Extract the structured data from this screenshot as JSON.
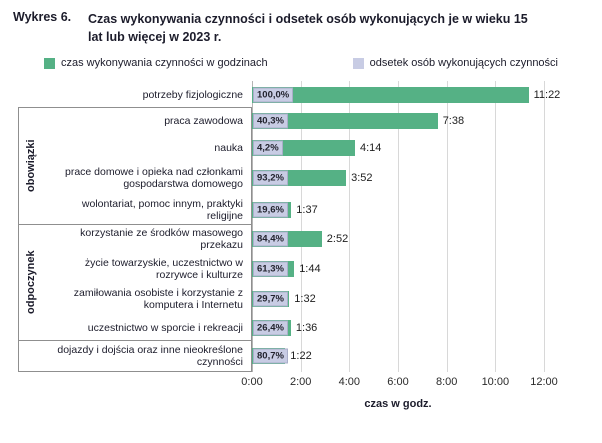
{
  "header": {
    "prefix": "Wykres 6.",
    "title": "Czas wykonywania czynności i odsetek osób wykonujących je w wieku 15 lat lub więcej w 2023 r."
  },
  "legend": {
    "time_label": "czas wykonywania czynności w godzinach",
    "percent_label": "odsetek osób wykonujących czynności"
  },
  "colors": {
    "time_bar": "#55b185",
    "percent_badge": "#c8cce4"
  },
  "chart_data": {
    "type": "bar",
    "orientation": "horizontal",
    "title": "Wykres 6. Czas wykonywania czynności i odsetek osób wykonujących je w wieku 15 lat lub więcej w 2023 r.",
    "xlabel": "czas w godz.",
    "x_ticks": [
      "0:00",
      "2:00",
      "4:00",
      "6:00",
      "8:00",
      "10:00",
      "12:00"
    ],
    "xlim_hours": [
      0,
      12
    ],
    "grid": true,
    "legend_position": "top",
    "groups": [
      {
        "name": null,
        "bordered": false,
        "rows": [
          0
        ]
      },
      {
        "name": "obowiązki",
        "bordered": true,
        "rows": [
          1,
          2,
          3,
          4
        ]
      },
      {
        "name": "odpoczynek",
        "bordered": true,
        "rows": [
          5,
          6,
          7,
          8
        ]
      },
      {
        "name": null,
        "bordered": true,
        "rows": [
          9
        ]
      }
    ],
    "rows": [
      {
        "label": "potrzeby fizjologiczne",
        "pct": "100,0%",
        "time": "11:22",
        "hours": 11.367
      },
      {
        "label": "praca zawodowa",
        "pct": "40,3%",
        "time": "7:38",
        "hours": 7.633
      },
      {
        "label": "nauka",
        "pct": "4,2%",
        "time": "4:14",
        "hours": 4.233
      },
      {
        "label": "prace domowe i opieka nad członkami gospodarstwa domowego",
        "pct": "93,2%",
        "time": "3:52",
        "hours": 3.867
      },
      {
        "label": "wolontariat, pomoc innym, praktyki religijne",
        "pct": "19,6%",
        "time": "1:37",
        "hours": 1.617
      },
      {
        "label": "korzystanie ze środków masowego przekazu",
        "pct": "84,4%",
        "time": "2:52",
        "hours": 2.867
      },
      {
        "label": "życie towarzyskie, uczestnictwo w rozrywce i kulturze",
        "pct": "61,3%",
        "time": "1:44",
        "hours": 1.733
      },
      {
        "label": "zamiłowania osobiste i korzystanie z komputera i Internetu",
        "pct": "29,7%",
        "time": "1:32",
        "hours": 1.533
      },
      {
        "label": "uczestnictwo w sporcie i rekreacji",
        "pct": "26,4%",
        "time": "1:36",
        "hours": 1.6
      },
      {
        "label": "dojazdy i dojścia oraz inne nieokreślone czynności",
        "pct": "80,7%",
        "time": "1:22",
        "hours": 1.367
      }
    ]
  }
}
